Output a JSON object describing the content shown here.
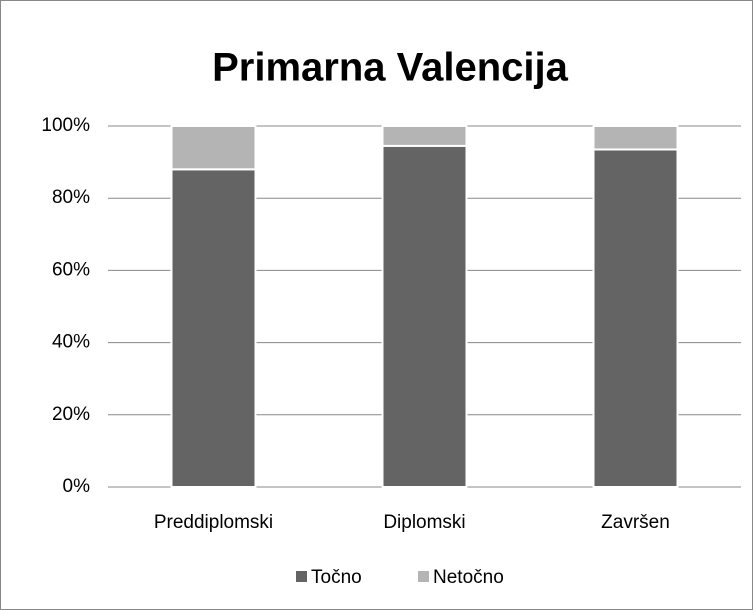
{
  "chart_data": {
    "type": "stacked_bar",
    "title": "Primarna Valencija",
    "categories": [
      "Preddiplomski",
      "Diplomski",
      "Završen"
    ],
    "series": [
      {
        "name": "Točno",
        "color": "#646464",
        "values": [
          88,
          94.5,
          93.5
        ]
      },
      {
        "name": "Netočno",
        "color": "#b4b4b4",
        "values": [
          12,
          5.5,
          6.5
        ]
      }
    ],
    "ylim": [
      0,
      100
    ],
    "yticks": [
      {
        "value": 0,
        "label": "0%"
      },
      {
        "value": 20,
        "label": "20%"
      },
      {
        "value": 40,
        "label": "40%"
      },
      {
        "value": 60,
        "label": "60%"
      },
      {
        "value": 80,
        "label": "80%"
      },
      {
        "value": 100,
        "label": "100%"
      }
    ],
    "grid": true,
    "legend": "bottom"
  }
}
